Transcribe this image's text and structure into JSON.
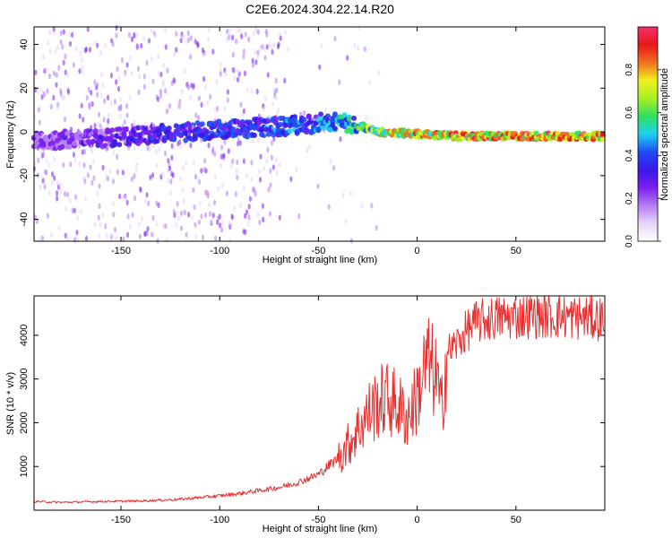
{
  "figure": {
    "title": "C2E6.2024.304.22.14.R20"
  },
  "colors": {
    "snr_line": "#e83030",
    "colormap": [
      "#ffffff",
      "#e6d6fa",
      "#b57cf0",
      "#7a1ff0",
      "#3a18e8",
      "#1f4cf5",
      "#1fd0f0",
      "#2fe060",
      "#a8f020",
      "#f0f020",
      "#f07020",
      "#e81818",
      "#f03070"
    ]
  },
  "chart_data": [
    {
      "type": "heatmap",
      "title": "C2E6.2024.304.22.14.R20",
      "xlabel": "Height of straight line (km)",
      "ylabel": "Frequency (Hz)",
      "xlim": [
        -194,
        95
      ],
      "ylim": [
        -50,
        48
      ],
      "xticks": [
        -150,
        -100,
        -50,
        0,
        50
      ],
      "yticks": [
        -40,
        -20,
        0,
        20,
        40
      ],
      "colorbar": {
        "label": "Normalized spectral amplitude",
        "range": [
          0,
          1
        ],
        "ticks": [
          "0.0",
          "0.2",
          "0.4",
          "0.6",
          "0.8"
        ]
      },
      "ridge": {
        "x": [
          -190,
          -160,
          -130,
          -100,
          -80,
          -60,
          -40,
          -30,
          -20,
          0,
          20,
          50,
          95
        ],
        "frequency": [
          -4,
          -3,
          -1,
          1,
          2,
          3,
          5,
          3,
          0,
          -1,
          -2,
          -2,
          -2
        ],
        "amplitude": [
          0.25,
          0.3,
          0.38,
          0.42,
          0.42,
          0.45,
          0.5,
          0.6,
          0.75,
          0.82,
          0.88,
          0.92,
          0.92
        ]
      },
      "grid": false
    },
    {
      "type": "line",
      "xlabel": "Height of straight line (km)",
      "ylabel": "SNR (10 * v/v)",
      "xlim": [
        -194,
        95
      ],
      "ylim": [
        0,
        4900
      ],
      "xticks": [
        -150,
        -100,
        -50,
        0,
        50
      ],
      "yticks": [
        1000,
        2000,
        3000,
        4000
      ],
      "grid": false,
      "x": [
        -194,
        -180,
        -160,
        -140,
        -120,
        -100,
        -90,
        -80,
        -70,
        -60,
        -50,
        -40,
        -35,
        -30,
        -25,
        -20,
        -15,
        -10,
        -5,
        0,
        5,
        10,
        12,
        15,
        20,
        25,
        30,
        40,
        50,
        60,
        70,
        80,
        95
      ],
      "y": [
        200,
        180,
        200,
        210,
        250,
        330,
        380,
        450,
        520,
        640,
        820,
        1200,
        1500,
        1850,
        2200,
        2450,
        2550,
        2400,
        2100,
        2600,
        3400,
        3000,
        2200,
        3600,
        3800,
        4100,
        4300,
        4400,
        4420,
        4450,
        4430,
        4410,
        4380
      ]
    }
  ]
}
